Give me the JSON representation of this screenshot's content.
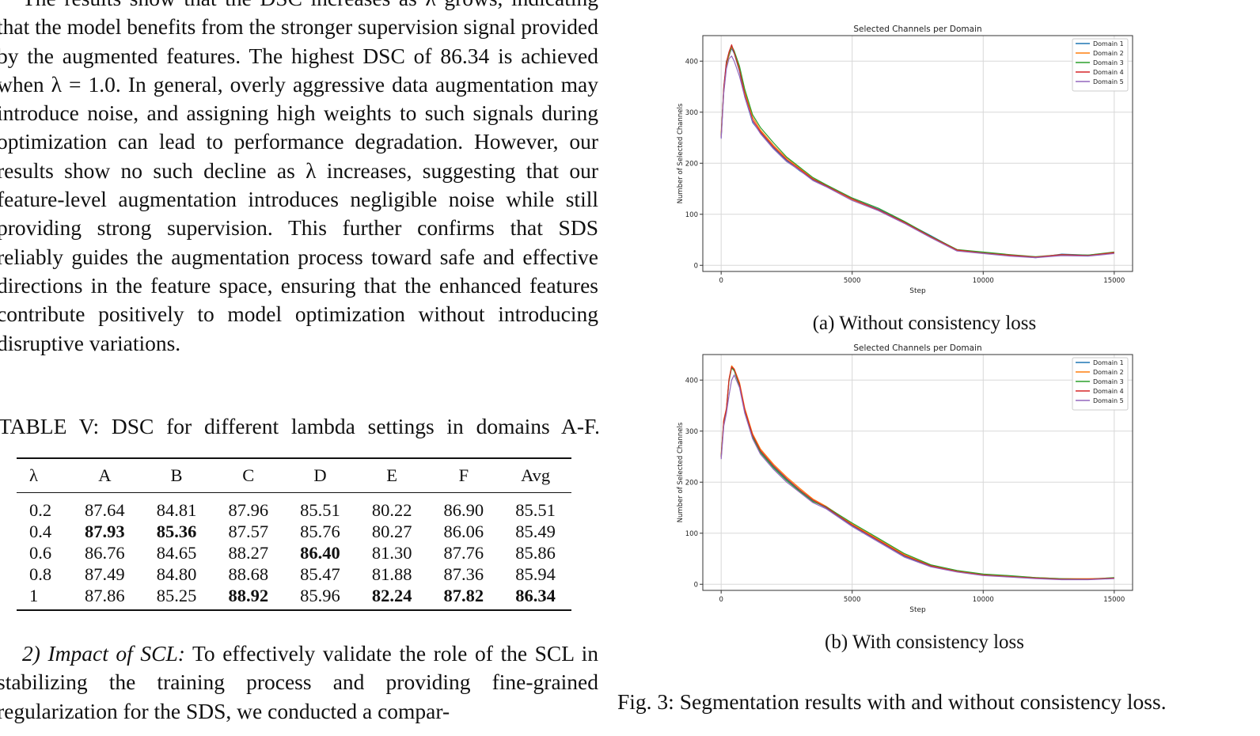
{
  "text": {
    "para1": "The results show that the DSC increases as λ grows, indicating that the model benefits from the stronger supervision signal provided by the augmented features. The highest DSC of 86.34 is achieved when λ = 1.0. In general, overly aggressive data augmentation may introduce noise, and assigning high weights to such signals during optimization can lead to performance degradation. However, our results show no such decline as λ increases, suggesting that our feature-level augmentation introduces negligible noise while still providing strong supervision. This further confirms that SDS reliably guides the augmentation process toward safe and effective directions in the feature space, ensuring that the enhanced features contribute positively to model optimization without introducing disruptive variations.",
    "table_caption": "TABLE V: DSC for different lambda settings in domains A-F.",
    "para2_heading": "2) Impact of SCL:",
    "para2_body": " To effectively validate the role of the SCL in stabilizing the training process and providing fine-grained regularization for the SDS, we conducted a compar-"
  },
  "table": {
    "headers": [
      "λ",
      "A",
      "B",
      "C",
      "D",
      "E",
      "F",
      "Avg"
    ],
    "rows": [
      [
        "0.2",
        "87.64",
        "84.81",
        "87.96",
        "85.51",
        "80.22",
        "86.90",
        "85.51"
      ],
      [
        "0.4",
        "87.93",
        "85.36",
        "87.57",
        "85.76",
        "80.27",
        "86.06",
        "85.49"
      ],
      [
        "0.6",
        "86.76",
        "84.65",
        "88.27",
        "86.40",
        "81.30",
        "87.76",
        "85.86"
      ],
      [
        "0.8",
        "87.49",
        "84.80",
        "88.68",
        "85.47",
        "81.88",
        "87.36",
        "85.94"
      ],
      [
        "1",
        "87.86",
        "85.25",
        "88.92",
        "85.96",
        "82.24",
        "87.82",
        "86.34"
      ]
    ],
    "bold": [
      [
        1,
        1
      ],
      [
        1,
        2
      ],
      [
        2,
        4
      ],
      [
        4,
        3
      ],
      [
        4,
        5
      ],
      [
        4,
        6
      ],
      [
        4,
        7
      ]
    ]
  },
  "figure": {
    "subcaption_a": "(a) Without consistency loss",
    "subcaption_b": "(b) With consistency loss",
    "caption": "Fig. 3: Segmentation results with and without consistency loss.",
    "series_colors": [
      "#1f77b4",
      "#ff7f0e",
      "#2ca02c",
      "#d62728",
      "#9467bd"
    ]
  },
  "chart_data": [
    {
      "type": "line",
      "title": "Selected Channels per Domain",
      "xlabel": "Step",
      "ylabel": "Number of Selected Channels",
      "xlim": [
        -700,
        15700
      ],
      "ylim": [
        -12,
        450
      ],
      "xticks": [
        0,
        5000,
        10000,
        15000
      ],
      "yticks": [
        0,
        100,
        200,
        300,
        400
      ],
      "grid": true,
      "legend": "top-right",
      "x": [
        0,
        100,
        200,
        300,
        400,
        500,
        700,
        900,
        1200,
        1500,
        2000,
        2500,
        3000,
        3500,
        4000,
        5000,
        6000,
        7000,
        8000,
        9000,
        10000,
        11000,
        12000,
        13000,
        14000,
        15000
      ],
      "series": [
        {
          "name": "Domain 1",
          "values": [
            250,
            350,
            400,
            410,
            425,
            415,
            380,
            330,
            280,
            260,
            230,
            205,
            185,
            168,
            155,
            130,
            110,
            85,
            58,
            30,
            25,
            20,
            15,
            22,
            20,
            25
          ]
        },
        {
          "name": "Domain 2",
          "values": [
            260,
            340,
            390,
            412,
            428,
            418,
            385,
            340,
            290,
            265,
            235,
            210,
            190,
            170,
            157,
            128,
            108,
            83,
            55,
            29,
            24,
            19,
            16,
            20,
            19,
            24
          ]
        },
        {
          "name": "Domain 3",
          "values": [
            255,
            345,
            395,
            415,
            430,
            420,
            390,
            345,
            295,
            270,
            240,
            212,
            192,
            172,
            158,
            132,
            112,
            86,
            57,
            31,
            26,
            21,
            17,
            21,
            20,
            26
          ]
        },
        {
          "name": "Domain 4",
          "values": [
            252,
            348,
            398,
            418,
            432,
            416,
            382,
            335,
            285,
            262,
            232,
            207,
            188,
            169,
            156,
            130,
            109,
            84,
            56,
            30,
            24,
            20,
            16,
            21,
            19,
            25
          ]
        },
        {
          "name": "Domain 5",
          "values": [
            248,
            338,
            385,
            405,
            410,
            400,
            370,
            330,
            282,
            258,
            228,
            203,
            186,
            166,
            154,
            127,
            107,
            82,
            54,
            28,
            23,
            18,
            15,
            19,
            18,
            23
          ]
        }
      ]
    },
    {
      "type": "line",
      "title": "Selected Channels per Domain",
      "xlabel": "Step",
      "ylabel": "Number of Selected Channels",
      "xlim": [
        -700,
        15700
      ],
      "ylim": [
        -12,
        450
      ],
      "xticks": [
        0,
        5000,
        10000,
        15000
      ],
      "yticks": [
        0,
        100,
        200,
        300,
        400
      ],
      "grid": true,
      "legend": "top-right",
      "x": [
        0,
        100,
        200,
        300,
        400,
        500,
        700,
        900,
        1200,
        1500,
        2000,
        2500,
        3000,
        3500,
        4000,
        5000,
        6000,
        7000,
        8000,
        9000,
        10000,
        11000,
        12000,
        13000,
        14000,
        15000
      ],
      "series": [
        {
          "name": "Domain 1",
          "values": [
            250,
            320,
            340,
            400,
            425,
            420,
            390,
            340,
            290,
            260,
            230,
            205,
            183,
            163,
            150,
            115,
            85,
            55,
            35,
            25,
            18,
            15,
            12,
            10,
            10,
            12
          ]
        },
        {
          "name": "Domain 2",
          "values": [
            255,
            322,
            345,
            402,
            428,
            422,
            395,
            345,
            295,
            265,
            235,
            210,
            188,
            167,
            153,
            118,
            88,
            58,
            37,
            26,
            19,
            16,
            13,
            11,
            11,
            12
          ]
        },
        {
          "name": "Domain 3",
          "values": [
            252,
            318,
            342,
            398,
            424,
            418,
            388,
            338,
            288,
            258,
            228,
            203,
            182,
            162,
            152,
            120,
            90,
            60,
            38,
            27,
            20,
            17,
            13,
            11,
            10,
            13
          ]
        },
        {
          "name": "Domain 4",
          "values": [
            248,
            321,
            343,
            401,
            426,
            421,
            392,
            342,
            292,
            262,
            232,
            207,
            185,
            165,
            151,
            116,
            86,
            56,
            36,
            25,
            18,
            15,
            12,
            10,
            10,
            12
          ]
        },
        {
          "name": "Domain 5",
          "values": [
            245,
            310,
            335,
            370,
            400,
            410,
            385,
            335,
            285,
            255,
            225,
            200,
            180,
            160,
            148,
            113,
            83,
            53,
            34,
            24,
            17,
            14,
            11,
            9,
            9,
            11
          ]
        }
      ]
    }
  ]
}
